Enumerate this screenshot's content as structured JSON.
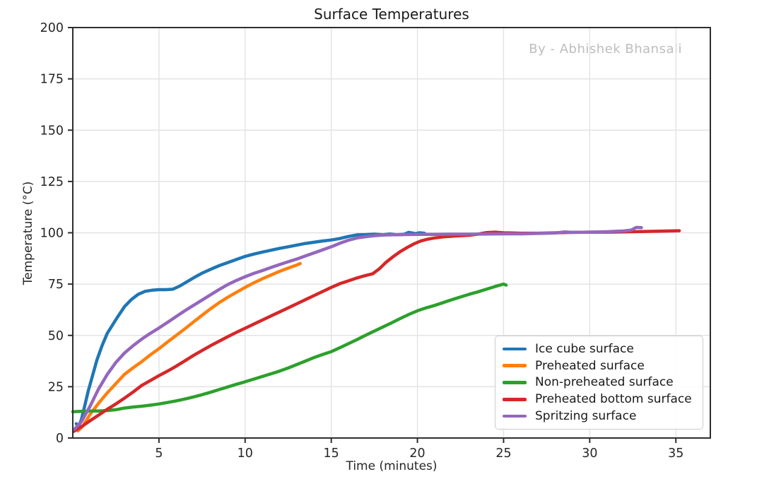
{
  "chart_data": {
    "type": "line",
    "title": "Surface Temperatures",
    "watermark": "By - Abhishek Bhansali",
    "xlabel": "Time (minutes)",
    "ylabel": "Temperature (°C)",
    "xlim": [
      0,
      37
    ],
    "ylim": [
      0,
      200
    ],
    "xticks": [
      5,
      10,
      15,
      20,
      25,
      30,
      35
    ],
    "yticks": [
      0,
      25,
      50,
      75,
      100,
      125,
      150,
      175,
      200
    ],
    "grid": true,
    "legend_position": "lower right",
    "series": [
      {
        "name": "Ice cube surface",
        "color": "#1f77b4",
        "points": [
          [
            0.2,
            7
          ],
          [
            0.35,
            6
          ],
          [
            0.5,
            9
          ],
          [
            0.7,
            16
          ],
          [
            0.9,
            23
          ],
          [
            1.1,
            29
          ],
          [
            1.4,
            38
          ],
          [
            1.7,
            45
          ],
          [
            2,
            51
          ],
          [
            2.3,
            55
          ],
          [
            2.6,
            59
          ],
          [
            3,
            64
          ],
          [
            3.4,
            67.5
          ],
          [
            3.8,
            70
          ],
          [
            4.2,
            71.5
          ],
          [
            4.6,
            72
          ],
          [
            5,
            72.3
          ],
          [
            5.4,
            72.3
          ],
          [
            5.8,
            72.5
          ],
          [
            6.2,
            74
          ],
          [
            6.6,
            76
          ],
          [
            7,
            78
          ],
          [
            7.5,
            80.3
          ],
          [
            8,
            82.2
          ],
          [
            8.5,
            84
          ],
          [
            9,
            85.5
          ],
          [
            9.5,
            87
          ],
          [
            10,
            88.5
          ],
          [
            10.5,
            89.6
          ],
          [
            11,
            90.6
          ],
          [
            11.5,
            91.5
          ],
          [
            12,
            92.4
          ],
          [
            12.5,
            93.2
          ],
          [
            13,
            94
          ],
          [
            13.5,
            94.8
          ],
          [
            14,
            95.4
          ],
          [
            14.5,
            96
          ],
          [
            15,
            96.5
          ],
          [
            15.5,
            97.2
          ],
          [
            16,
            98.2
          ],
          [
            16.5,
            99
          ],
          [
            17,
            99.1
          ],
          [
            17.5,
            99.3
          ],
          [
            18,
            99
          ],
          [
            18.4,
            99.4
          ],
          [
            18.8,
            99
          ],
          [
            19.2,
            99.2
          ],
          [
            19.5,
            100.2
          ],
          [
            19.9,
            99.6
          ],
          [
            20.1,
            100
          ],
          [
            20.4,
            99.8
          ]
        ]
      },
      {
        "name": "Preheated surface",
        "color": "#ff7f0e",
        "points": [
          [
            0.3,
            3.5
          ],
          [
            0.6,
            6
          ],
          [
            1,
            11.5
          ],
          [
            1.5,
            17
          ],
          [
            2,
            22
          ],
          [
            2.5,
            26.5
          ],
          [
            3,
            31
          ],
          [
            3.5,
            34.2
          ],
          [
            4,
            37.2
          ],
          [
            4.5,
            40.5
          ],
          [
            5,
            43.5
          ],
          [
            5.5,
            46.8
          ],
          [
            6,
            50
          ],
          [
            6.5,
            53.2
          ],
          [
            7,
            56.5
          ],
          [
            7.5,
            59.8
          ],
          [
            8,
            63
          ],
          [
            8.5,
            66
          ],
          [
            9,
            68.6
          ],
          [
            9.5,
            71
          ],
          [
            10,
            73.4
          ],
          [
            10.5,
            75.6
          ],
          [
            11,
            77.6
          ],
          [
            11.5,
            79.4
          ],
          [
            12,
            81.2
          ],
          [
            12.5,
            82.8
          ],
          [
            13,
            84.3
          ],
          [
            13.2,
            85
          ]
        ]
      },
      {
        "name": "Non-preheated surface",
        "color": "#2ca02c",
        "points": [
          [
            0,
            12.8
          ],
          [
            0.5,
            13
          ],
          [
            1,
            13.2
          ],
          [
            1.5,
            13.2
          ],
          [
            2,
            13.4
          ],
          [
            2.5,
            13.8
          ],
          [
            3,
            14.6
          ],
          [
            3.5,
            15.1
          ],
          [
            4,
            15.5
          ],
          [
            4.5,
            16
          ],
          [
            5,
            16.6
          ],
          [
            5.5,
            17.3
          ],
          [
            6,
            18.1
          ],
          [
            6.5,
            19
          ],
          [
            7,
            20
          ],
          [
            7.5,
            21.1
          ],
          [
            8,
            22.3
          ],
          [
            8.5,
            23.6
          ],
          [
            9,
            24.9
          ],
          [
            9.5,
            26.2
          ],
          [
            10,
            27.4
          ],
          [
            10.5,
            28.7
          ],
          [
            11,
            30
          ],
          [
            11.5,
            31.3
          ],
          [
            12,
            32.6
          ],
          [
            12.5,
            34.1
          ],
          [
            13,
            35.8
          ],
          [
            13.5,
            37.5
          ],
          [
            14,
            39.2
          ],
          [
            14.5,
            40.7
          ],
          [
            15,
            42.1
          ],
          [
            15.5,
            44
          ],
          [
            16,
            46
          ],
          [
            16.5,
            48
          ],
          [
            17,
            50.1
          ],
          [
            17.5,
            52.1
          ],
          [
            18,
            54.1
          ],
          [
            18.5,
            56.1
          ],
          [
            19,
            58.2
          ],
          [
            19.5,
            60.2
          ],
          [
            20,
            62
          ],
          [
            20.5,
            63.4
          ],
          [
            21,
            64.6
          ],
          [
            21.5,
            66
          ],
          [
            22,
            67.4
          ],
          [
            22.5,
            68.7
          ],
          [
            23,
            70
          ],
          [
            23.5,
            71.2
          ],
          [
            24,
            72.5
          ],
          [
            24.5,
            73.8
          ],
          [
            25,
            75
          ],
          [
            25.15,
            74.5
          ]
        ]
      },
      {
        "name": "Preheated bottom surface",
        "color": "#d62728",
        "points": [
          [
            0.05,
            3.2
          ],
          [
            0.5,
            5.5
          ],
          [
            1,
            8.4
          ],
          [
            1.5,
            11.2
          ],
          [
            2,
            14
          ],
          [
            2.5,
            16.6
          ],
          [
            3,
            19.4
          ],
          [
            3.5,
            22.4
          ],
          [
            4,
            25.6
          ],
          [
            4.5,
            28
          ],
          [
            5,
            30.4
          ],
          [
            5.5,
            32.6
          ],
          [
            6,
            35
          ],
          [
            6.5,
            37.6
          ],
          [
            7,
            40.2
          ],
          [
            7.5,
            42.6
          ],
          [
            8,
            45
          ],
          [
            8.5,
            47.2
          ],
          [
            9,
            49.4
          ],
          [
            9.5,
            51.5
          ],
          [
            10,
            53.5
          ],
          [
            10.5,
            55.5
          ],
          [
            11,
            57.5
          ],
          [
            11.5,
            59.5
          ],
          [
            12,
            61.4
          ],
          [
            12.5,
            63.4
          ],
          [
            13,
            65.4
          ],
          [
            13.5,
            67.4
          ],
          [
            14,
            69.4
          ],
          [
            14.5,
            71.4
          ],
          [
            15,
            73.4
          ],
          [
            15.5,
            75.2
          ],
          [
            16,
            76.6
          ],
          [
            16.5,
            78
          ],
          [
            17,
            79.2
          ],
          [
            17.4,
            80
          ],
          [
            17.8,
            82.5
          ],
          [
            18.2,
            85.8
          ],
          [
            18.6,
            88.4
          ],
          [
            19,
            90.8
          ],
          [
            19.4,
            92.8
          ],
          [
            19.8,
            94.6
          ],
          [
            20.2,
            96
          ],
          [
            20.6,
            96.9
          ],
          [
            21,
            97.5
          ],
          [
            21.5,
            98
          ],
          [
            22,
            98.3
          ],
          [
            22.5,
            98.6
          ],
          [
            23,
            98.8
          ],
          [
            23.5,
            99.3
          ],
          [
            24,
            100.1
          ],
          [
            24.5,
            100.3
          ],
          [
            25,
            100
          ],
          [
            25.5,
            99.9
          ],
          [
            26,
            99.8
          ],
          [
            27,
            99.8
          ],
          [
            28,
            100
          ],
          [
            29,
            100.2
          ],
          [
            30,
            100.3
          ],
          [
            31,
            100.3
          ],
          [
            32,
            100.4
          ],
          [
            33,
            100.6
          ],
          [
            34,
            100.8
          ],
          [
            35.2,
            101
          ]
        ]
      },
      {
        "name": "Spritzing surface",
        "color": "#9467bd",
        "points": [
          [
            0.1,
            4.3
          ],
          [
            0.5,
            8
          ],
          [
            1,
            15.5
          ],
          [
            1.5,
            24
          ],
          [
            2,
            31
          ],
          [
            2.5,
            36.8
          ],
          [
            3,
            41.4
          ],
          [
            3.5,
            45
          ],
          [
            4,
            48.2
          ],
          [
            4.5,
            51
          ],
          [
            5,
            53.6
          ],
          [
            5.5,
            56.4
          ],
          [
            6,
            59.2
          ],
          [
            6.5,
            62
          ],
          [
            7,
            64.6
          ],
          [
            7.5,
            67.2
          ],
          [
            8,
            69.8
          ],
          [
            8.5,
            72.4
          ],
          [
            9,
            74.8
          ],
          [
            9.5,
            76.8
          ],
          [
            10,
            78.6
          ],
          [
            10.5,
            80.2
          ],
          [
            11,
            81.6
          ],
          [
            11.5,
            83.1
          ],
          [
            12,
            84.5
          ],
          [
            12.5,
            85.9
          ],
          [
            13,
            87.2
          ],
          [
            13.5,
            88.7
          ],
          [
            14,
            90.2
          ],
          [
            14.5,
            91.7
          ],
          [
            15,
            93.2
          ],
          [
            15.5,
            94.9
          ],
          [
            16,
            96.4
          ],
          [
            16.5,
            97.5
          ],
          [
            17,
            98.1
          ],
          [
            17.5,
            98.6
          ],
          [
            18,
            98.9
          ],
          [
            18.5,
            99
          ],
          [
            19,
            99.1
          ],
          [
            20,
            99.2
          ],
          [
            21,
            99.2
          ],
          [
            22,
            99.3
          ],
          [
            23,
            99.3
          ],
          [
            24,
            99.4
          ],
          [
            25,
            99.5
          ],
          [
            26,
            99.5
          ],
          [
            27,
            99.7
          ],
          [
            28,
            99.9
          ],
          [
            28.5,
            100.4
          ],
          [
            29,
            100.2
          ],
          [
            30,
            100.3
          ],
          [
            31,
            100.5
          ],
          [
            32,
            100.9
          ],
          [
            32.4,
            101.3
          ],
          [
            32.7,
            102.6
          ],
          [
            33,
            102.5
          ]
        ]
      }
    ]
  }
}
